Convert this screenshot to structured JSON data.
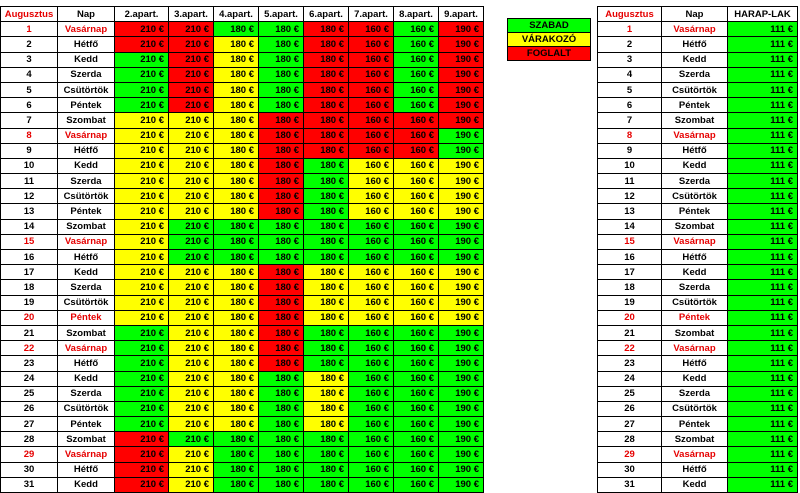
{
  "main": {
    "headers": [
      "Augusztus",
      "Nap",
      "2.apart.",
      "3.apart.",
      "4.apart.",
      "5.apart.",
      "6.apart.",
      "7.apart.",
      "8.apart.",
      "9.apart."
    ],
    "rows": [
      {
        "day": "1",
        "name": "Vasárnap",
        "red": true,
        "cells": [
          [
            "210 €",
            "r"
          ],
          [
            "210 €",
            "r"
          ],
          [
            "180 €",
            "g"
          ],
          [
            "180 €",
            "g"
          ],
          [
            "180 €",
            "r"
          ],
          [
            "160 €",
            "r"
          ],
          [
            "160 €",
            "g"
          ],
          [
            "190 €",
            "r"
          ]
        ]
      },
      {
        "day": "2",
        "name": "Hétfő",
        "red": false,
        "cells": [
          [
            "210 €",
            "r"
          ],
          [
            "210 €",
            "r"
          ],
          [
            "180 €",
            "y"
          ],
          [
            "180 €",
            "g"
          ],
          [
            "180 €",
            "r"
          ],
          [
            "160 €",
            "r"
          ],
          [
            "160 €",
            "g"
          ],
          [
            "190 €",
            "r"
          ]
        ]
      },
      {
        "day": "3",
        "name": "Kedd",
        "red": false,
        "cells": [
          [
            "210 €",
            "g"
          ],
          [
            "210 €",
            "r"
          ],
          [
            "180 €",
            "y"
          ],
          [
            "180 €",
            "g"
          ],
          [
            "180 €",
            "r"
          ],
          [
            "160 €",
            "r"
          ],
          [
            "160 €",
            "g"
          ],
          [
            "190 €",
            "r"
          ]
        ]
      },
      {
        "day": "4",
        "name": "Szerda",
        "red": false,
        "cells": [
          [
            "210 €",
            "g"
          ],
          [
            "210 €",
            "r"
          ],
          [
            "180 €",
            "y"
          ],
          [
            "180 €",
            "g"
          ],
          [
            "180 €",
            "r"
          ],
          [
            "160 €",
            "r"
          ],
          [
            "160 €",
            "g"
          ],
          [
            "190 €",
            "r"
          ]
        ]
      },
      {
        "day": "5",
        "name": "Csütörtök",
        "red": false,
        "cells": [
          [
            "210 €",
            "g"
          ],
          [
            "210 €",
            "r"
          ],
          [
            "180 €",
            "y"
          ],
          [
            "180 €",
            "g"
          ],
          [
            "180 €",
            "r"
          ],
          [
            "160 €",
            "r"
          ],
          [
            "160 €",
            "g"
          ],
          [
            "190 €",
            "r"
          ]
        ]
      },
      {
        "day": "6",
        "name": "Péntek",
        "red": false,
        "cells": [
          [
            "210 €",
            "g"
          ],
          [
            "210 €",
            "r"
          ],
          [
            "180 €",
            "y"
          ],
          [
            "180 €",
            "g"
          ],
          [
            "180 €",
            "r"
          ],
          [
            "160 €",
            "r"
          ],
          [
            "160 €",
            "g"
          ],
          [
            "190 €",
            "r"
          ]
        ]
      },
      {
        "day": "7",
        "name": "Szombat",
        "red": false,
        "cells": [
          [
            "210 €",
            "y"
          ],
          [
            "210 €",
            "y"
          ],
          [
            "180 €",
            "y"
          ],
          [
            "180 €",
            "r"
          ],
          [
            "180 €",
            "r"
          ],
          [
            "160 €",
            "r"
          ],
          [
            "160 €",
            "r"
          ],
          [
            "190 €",
            "r"
          ]
        ]
      },
      {
        "day": "8",
        "name": "Vasárnap",
        "red": true,
        "cells": [
          [
            "210 €",
            "y"
          ],
          [
            "210 €",
            "y"
          ],
          [
            "180 €",
            "y"
          ],
          [
            "180 €",
            "r"
          ],
          [
            "180 €",
            "r"
          ],
          [
            "160 €",
            "r"
          ],
          [
            "160 €",
            "r"
          ],
          [
            "190 €",
            "g"
          ]
        ]
      },
      {
        "day": "9",
        "name": "Hétfő",
        "red": false,
        "cells": [
          [
            "210 €",
            "y"
          ],
          [
            "210 €",
            "y"
          ],
          [
            "180 €",
            "y"
          ],
          [
            "180 €",
            "r"
          ],
          [
            "180 €",
            "r"
          ],
          [
            "160 €",
            "r"
          ],
          [
            "160 €",
            "r"
          ],
          [
            "190 €",
            "g"
          ]
        ]
      },
      {
        "day": "10",
        "name": "Kedd",
        "red": false,
        "cells": [
          [
            "210 €",
            "y"
          ],
          [
            "210 €",
            "y"
          ],
          [
            "180 €",
            "y"
          ],
          [
            "180 €",
            "r"
          ],
          [
            "180 €",
            "g"
          ],
          [
            "160 €",
            "y"
          ],
          [
            "160 €",
            "y"
          ],
          [
            "190 €",
            "y"
          ]
        ]
      },
      {
        "day": "11",
        "name": "Szerda",
        "red": false,
        "cells": [
          [
            "210 €",
            "y"
          ],
          [
            "210 €",
            "y"
          ],
          [
            "180 €",
            "y"
          ],
          [
            "180 €",
            "r"
          ],
          [
            "180 €",
            "g"
          ],
          [
            "160 €",
            "y"
          ],
          [
            "160 €",
            "y"
          ],
          [
            "190 €",
            "y"
          ]
        ]
      },
      {
        "day": "12",
        "name": "Csütörtök",
        "red": false,
        "cells": [
          [
            "210 €",
            "y"
          ],
          [
            "210 €",
            "y"
          ],
          [
            "180 €",
            "y"
          ],
          [
            "180 €",
            "r"
          ],
          [
            "180 €",
            "g"
          ],
          [
            "160 €",
            "y"
          ],
          [
            "160 €",
            "y"
          ],
          [
            "190 €",
            "y"
          ]
        ]
      },
      {
        "day": "13",
        "name": "Péntek",
        "red": false,
        "cells": [
          [
            "210 €",
            "y"
          ],
          [
            "210 €",
            "y"
          ],
          [
            "180 €",
            "y"
          ],
          [
            "180 €",
            "r"
          ],
          [
            "180 €",
            "g"
          ],
          [
            "160 €",
            "y"
          ],
          [
            "160 €",
            "y"
          ],
          [
            "190 €",
            "y"
          ]
        ]
      },
      {
        "day": "14",
        "name": "Szombat",
        "red": false,
        "cells": [
          [
            "210 €",
            "y"
          ],
          [
            "210 €",
            "g"
          ],
          [
            "180 €",
            "g"
          ],
          [
            "180 €",
            "g"
          ],
          [
            "180 €",
            "g"
          ],
          [
            "160 €",
            "g"
          ],
          [
            "160 €",
            "g"
          ],
          [
            "190 €",
            "g"
          ]
        ]
      },
      {
        "day": "15",
        "name": "Vasárnap",
        "red": true,
        "cells": [
          [
            "210 €",
            "y"
          ],
          [
            "210 €",
            "g"
          ],
          [
            "180 €",
            "g"
          ],
          [
            "180 €",
            "g"
          ],
          [
            "180 €",
            "g"
          ],
          [
            "160 €",
            "g"
          ],
          [
            "160 €",
            "g"
          ],
          [
            "190 €",
            "g"
          ]
        ]
      },
      {
        "day": "16",
        "name": "Hétfő",
        "red": false,
        "cells": [
          [
            "210 €",
            "y"
          ],
          [
            "210 €",
            "g"
          ],
          [
            "180 €",
            "g"
          ],
          [
            "180 €",
            "g"
          ],
          [
            "180 €",
            "g"
          ],
          [
            "160 €",
            "g"
          ],
          [
            "160 €",
            "g"
          ],
          [
            "190 €",
            "g"
          ]
        ]
      },
      {
        "day": "17",
        "name": "Kedd",
        "red": false,
        "cells": [
          [
            "210 €",
            "y"
          ],
          [
            "210 €",
            "y"
          ],
          [
            "180 €",
            "y"
          ],
          [
            "180 €",
            "r"
          ],
          [
            "180 €",
            "y"
          ],
          [
            "160 €",
            "y"
          ],
          [
            "160 €",
            "y"
          ],
          [
            "190 €",
            "y"
          ]
        ]
      },
      {
        "day": "18",
        "name": "Szerda",
        "red": false,
        "cells": [
          [
            "210 €",
            "y"
          ],
          [
            "210 €",
            "y"
          ],
          [
            "180 €",
            "y"
          ],
          [
            "180 €",
            "r"
          ],
          [
            "180 €",
            "y"
          ],
          [
            "160 €",
            "y"
          ],
          [
            "160 €",
            "y"
          ],
          [
            "190 €",
            "y"
          ]
        ]
      },
      {
        "day": "19",
        "name": "Csütörtök",
        "red": false,
        "cells": [
          [
            "210 €",
            "y"
          ],
          [
            "210 €",
            "y"
          ],
          [
            "180 €",
            "y"
          ],
          [
            "180 €",
            "r"
          ],
          [
            "180 €",
            "y"
          ],
          [
            "160 €",
            "y"
          ],
          [
            "160 €",
            "y"
          ],
          [
            "190 €",
            "y"
          ]
        ]
      },
      {
        "day": "20",
        "name": "Péntek",
        "red": true,
        "cells": [
          [
            "210 €",
            "y"
          ],
          [
            "210 €",
            "y"
          ],
          [
            "180 €",
            "y"
          ],
          [
            "180 €",
            "r"
          ],
          [
            "180 €",
            "y"
          ],
          [
            "160 €",
            "y"
          ],
          [
            "160 €",
            "y"
          ],
          [
            "190 €",
            "y"
          ]
        ]
      },
      {
        "day": "21",
        "name": "Szombat",
        "red": false,
        "cells": [
          [
            "210 €",
            "g"
          ],
          [
            "210 €",
            "y"
          ],
          [
            "180 €",
            "y"
          ],
          [
            "180 €",
            "r"
          ],
          [
            "180 €",
            "g"
          ],
          [
            "160 €",
            "g"
          ],
          [
            "160 €",
            "g"
          ],
          [
            "190 €",
            "g"
          ]
        ]
      },
      {
        "day": "22",
        "name": "Vasárnap",
        "red": true,
        "cells": [
          [
            "210 €",
            "g"
          ],
          [
            "210 €",
            "y"
          ],
          [
            "180 €",
            "y"
          ],
          [
            "180 €",
            "r"
          ],
          [
            "180 €",
            "g"
          ],
          [
            "160 €",
            "g"
          ],
          [
            "160 €",
            "g"
          ],
          [
            "190 €",
            "g"
          ]
        ]
      },
      {
        "day": "23",
        "name": "Hétfő",
        "red": false,
        "cells": [
          [
            "210 €",
            "g"
          ],
          [
            "210 €",
            "y"
          ],
          [
            "180 €",
            "y"
          ],
          [
            "180 €",
            "r"
          ],
          [
            "180 €",
            "g"
          ],
          [
            "160 €",
            "g"
          ],
          [
            "160 €",
            "g"
          ],
          [
            "190 €",
            "g"
          ]
        ]
      },
      {
        "day": "24",
        "name": "Kedd",
        "red": false,
        "cells": [
          [
            "210 €",
            "g"
          ],
          [
            "210 €",
            "y"
          ],
          [
            "180 €",
            "y"
          ],
          [
            "180 €",
            "g"
          ],
          [
            "180 €",
            "y"
          ],
          [
            "160 €",
            "g"
          ],
          [
            "160 €",
            "g"
          ],
          [
            "190 €",
            "g"
          ]
        ]
      },
      {
        "day": "25",
        "name": "Szerda",
        "red": false,
        "cells": [
          [
            "210 €",
            "g"
          ],
          [
            "210 €",
            "y"
          ],
          [
            "180 €",
            "y"
          ],
          [
            "180 €",
            "g"
          ],
          [
            "180 €",
            "y"
          ],
          [
            "160 €",
            "g"
          ],
          [
            "160 €",
            "g"
          ],
          [
            "190 €",
            "g"
          ]
        ]
      },
      {
        "day": "26",
        "name": "Csütörtök",
        "red": false,
        "cells": [
          [
            "210 €",
            "g"
          ],
          [
            "210 €",
            "y"
          ],
          [
            "180 €",
            "y"
          ],
          [
            "180 €",
            "g"
          ],
          [
            "180 €",
            "y"
          ],
          [
            "160 €",
            "g"
          ],
          [
            "160 €",
            "g"
          ],
          [
            "190 €",
            "g"
          ]
        ]
      },
      {
        "day": "27",
        "name": "Péntek",
        "red": false,
        "cells": [
          [
            "210 €",
            "g"
          ],
          [
            "210 €",
            "y"
          ],
          [
            "180 €",
            "y"
          ],
          [
            "180 €",
            "g"
          ],
          [
            "180 €",
            "y"
          ],
          [
            "160 €",
            "g"
          ],
          [
            "160 €",
            "g"
          ],
          [
            "190 €",
            "g"
          ]
        ]
      },
      {
        "day": "28",
        "name": "Szombat",
        "red": false,
        "cells": [
          [
            "210 €",
            "r"
          ],
          [
            "210 €",
            "g"
          ],
          [
            "180 €",
            "g"
          ],
          [
            "180 €",
            "g"
          ],
          [
            "180 €",
            "g"
          ],
          [
            "160 €",
            "g"
          ],
          [
            "160 €",
            "g"
          ],
          [
            "190 €",
            "g"
          ]
        ]
      },
      {
        "day": "29",
        "name": "Vasárnap",
        "red": true,
        "cells": [
          [
            "210 €",
            "r"
          ],
          [
            "210 €",
            "y"
          ],
          [
            "180 €",
            "g"
          ],
          [
            "180 €",
            "g"
          ],
          [
            "180 €",
            "g"
          ],
          [
            "160 €",
            "g"
          ],
          [
            "160 €",
            "g"
          ],
          [
            "190 €",
            "g"
          ]
        ]
      },
      {
        "day": "30",
        "name": "Hétfő",
        "red": false,
        "cells": [
          [
            "210 €",
            "r"
          ],
          [
            "210 €",
            "y"
          ],
          [
            "180 €",
            "g"
          ],
          [
            "180 €",
            "g"
          ],
          [
            "180 €",
            "g"
          ],
          [
            "160 €",
            "g"
          ],
          [
            "160 €",
            "g"
          ],
          [
            "190 €",
            "g"
          ]
        ]
      },
      {
        "day": "31",
        "name": "Kedd",
        "red": false,
        "cells": [
          [
            "210 €",
            "r"
          ],
          [
            "210 €",
            "y"
          ],
          [
            "180 €",
            "g"
          ],
          [
            "180 €",
            "g"
          ],
          [
            "180 €",
            "g"
          ],
          [
            "160 €",
            "g"
          ],
          [
            "160 €",
            "g"
          ],
          [
            "190 €",
            "g"
          ]
        ]
      }
    ]
  },
  "legend": [
    {
      "label": "SZABAD",
      "color": "g"
    },
    {
      "label": "VÁRAKOZÓ",
      "color": "y"
    },
    {
      "label": "FOGLALT",
      "color": "r"
    }
  ],
  "side": {
    "headers": [
      "Augusztus",
      "Nap",
      "HARAP-LAK"
    ],
    "price": "111 €"
  },
  "colors": {
    "g": "#00ff00",
    "y": "#ffff00",
    "r": "#ff0000",
    "red_text": "#e60000"
  }
}
